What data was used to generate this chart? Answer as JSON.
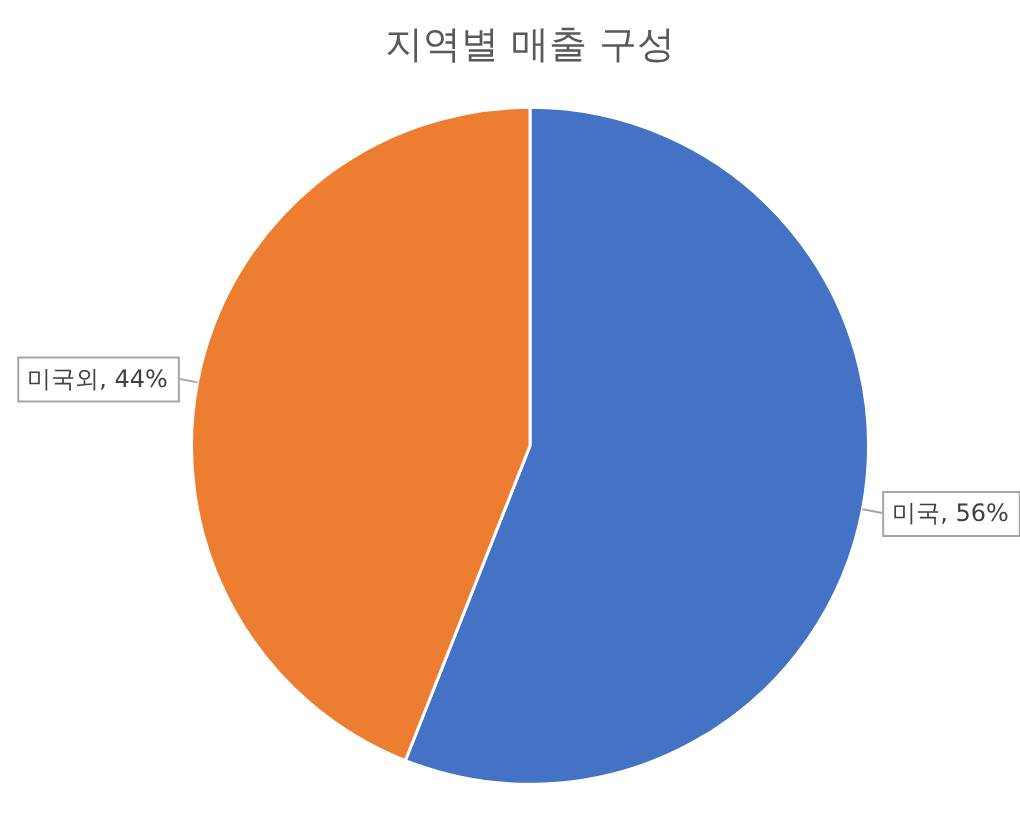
{
  "chart_data": {
    "type": "pie",
    "title": "지역별 매출 구성",
    "categories": [
      "미국",
      "미국외"
    ],
    "values": [
      56,
      44
    ],
    "colors": [
      "#4472c4",
      "#ed7d31"
    ],
    "value_labels": [
      "56%",
      "44%"
    ],
    "legend": false
  }
}
